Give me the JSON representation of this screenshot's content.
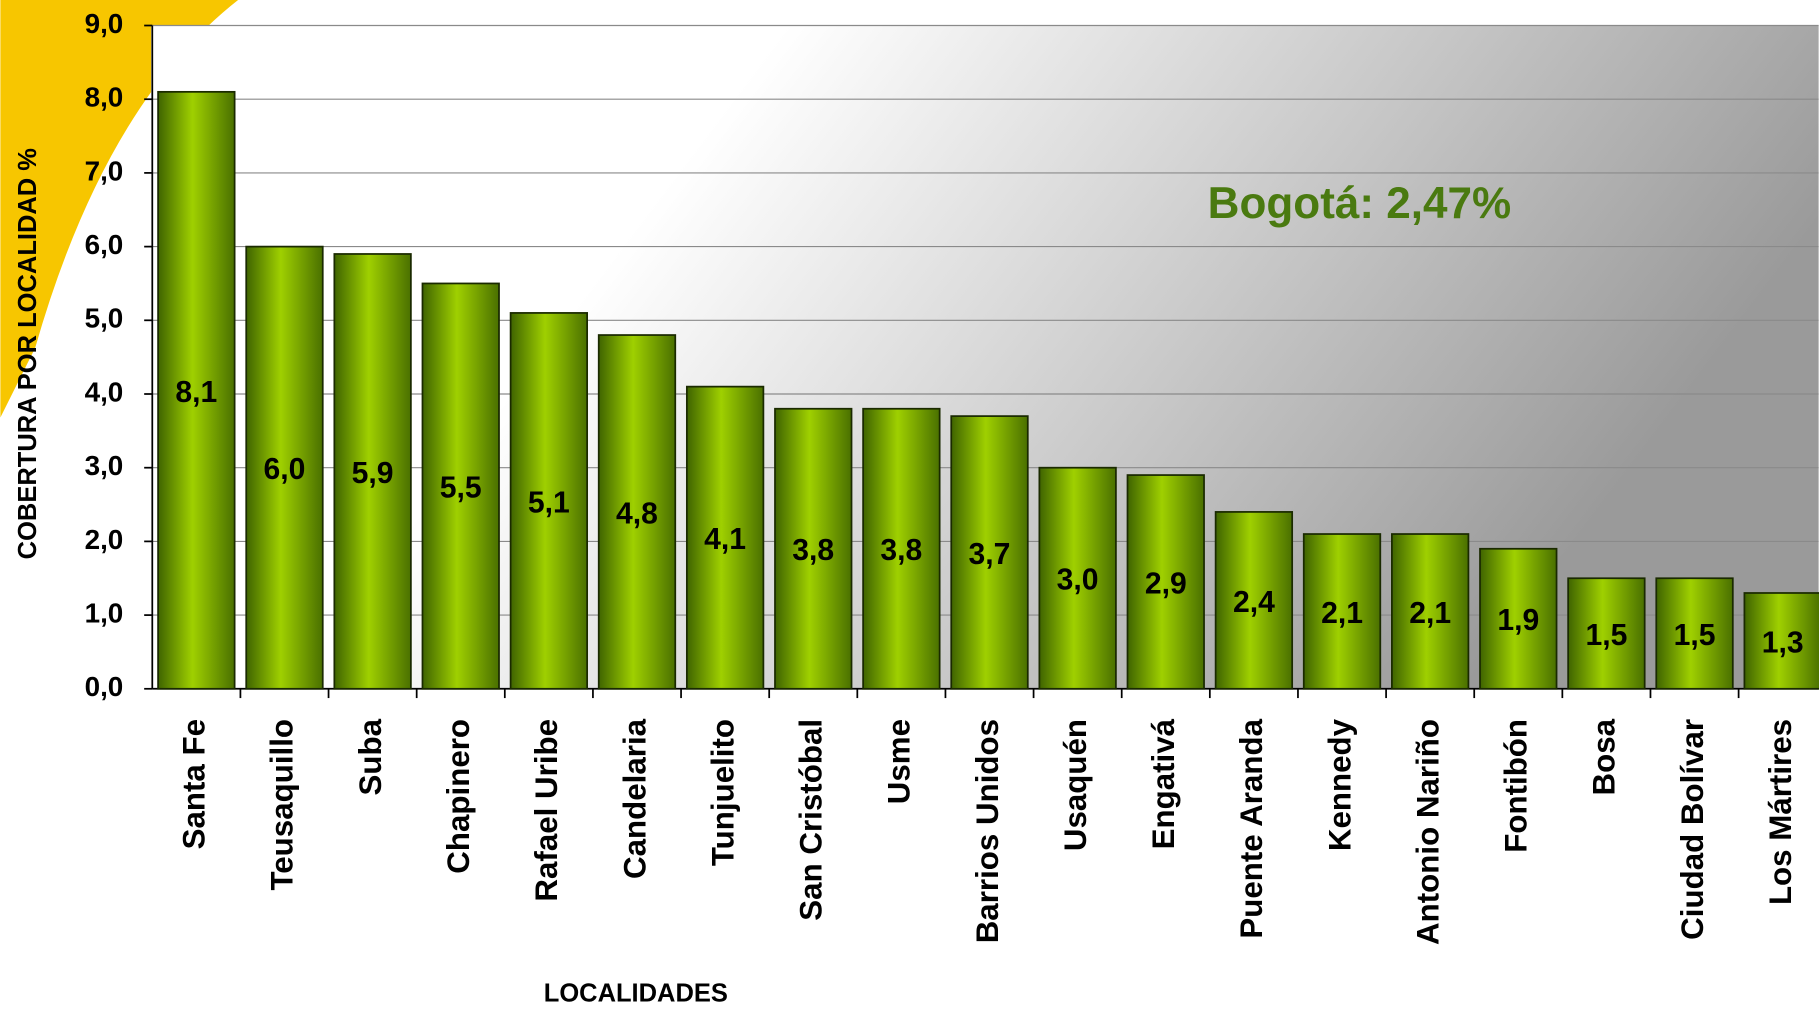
{
  "chart_data": {
    "type": "bar",
    "annotation": "Bogotá: 2,47%",
    "x_label": "LOCALIDADES",
    "y_label": "COBERTURA POR LOCALIDAD %",
    "categories": [
      "Santa Fe",
      "Teusaquillo",
      "Suba",
      "Chapinero",
      "Rafael Uribe",
      "Candelaria",
      "Tunjuelito",
      "San Cristóbal",
      "Usme",
      "Barrios Unidos",
      "Usaquén",
      "Engativá",
      "Puente Aranda",
      "Kennedy",
      "Antonio Nariño",
      "Fontibón",
      "Bosa",
      "Ciudad Bolívar",
      "Los Mártires"
    ],
    "values": [
      8.1,
      6.0,
      5.9,
      5.5,
      5.1,
      4.8,
      4.1,
      3.8,
      3.8,
      3.7,
      3.0,
      2.9,
      2.4,
      2.1,
      2.1,
      1.9,
      1.5,
      1.5,
      1.3
    ],
    "value_labels": [
      "8,1",
      "6,0",
      "5,9",
      "5,5",
      "5,1",
      "4,8",
      "4,1",
      "3,8",
      "3,8",
      "3,7",
      "3,0",
      "2,9",
      "2,4",
      "2,1",
      "2,1",
      "1,9",
      "1,5",
      "1,5",
      "1,3"
    ],
    "color": "#8dc000",
    "ylim": [
      0,
      9
    ],
    "yticks": [
      {
        "value": 0,
        "label": "0,0"
      },
      {
        "value": 1,
        "label": "1,0"
      },
      {
        "value": 2,
        "label": "2,0"
      },
      {
        "value": 3,
        "label": "3,0"
      },
      {
        "value": 4,
        "label": "4,0"
      },
      {
        "value": 5,
        "label": "5,0"
      },
      {
        "value": 6,
        "label": "6,0"
      },
      {
        "value": 7,
        "label": "7,0"
      },
      {
        "value": 8,
        "label": "8,0"
      },
      {
        "value": 9,
        "label": "9,0"
      }
    ],
    "grid": true
  }
}
